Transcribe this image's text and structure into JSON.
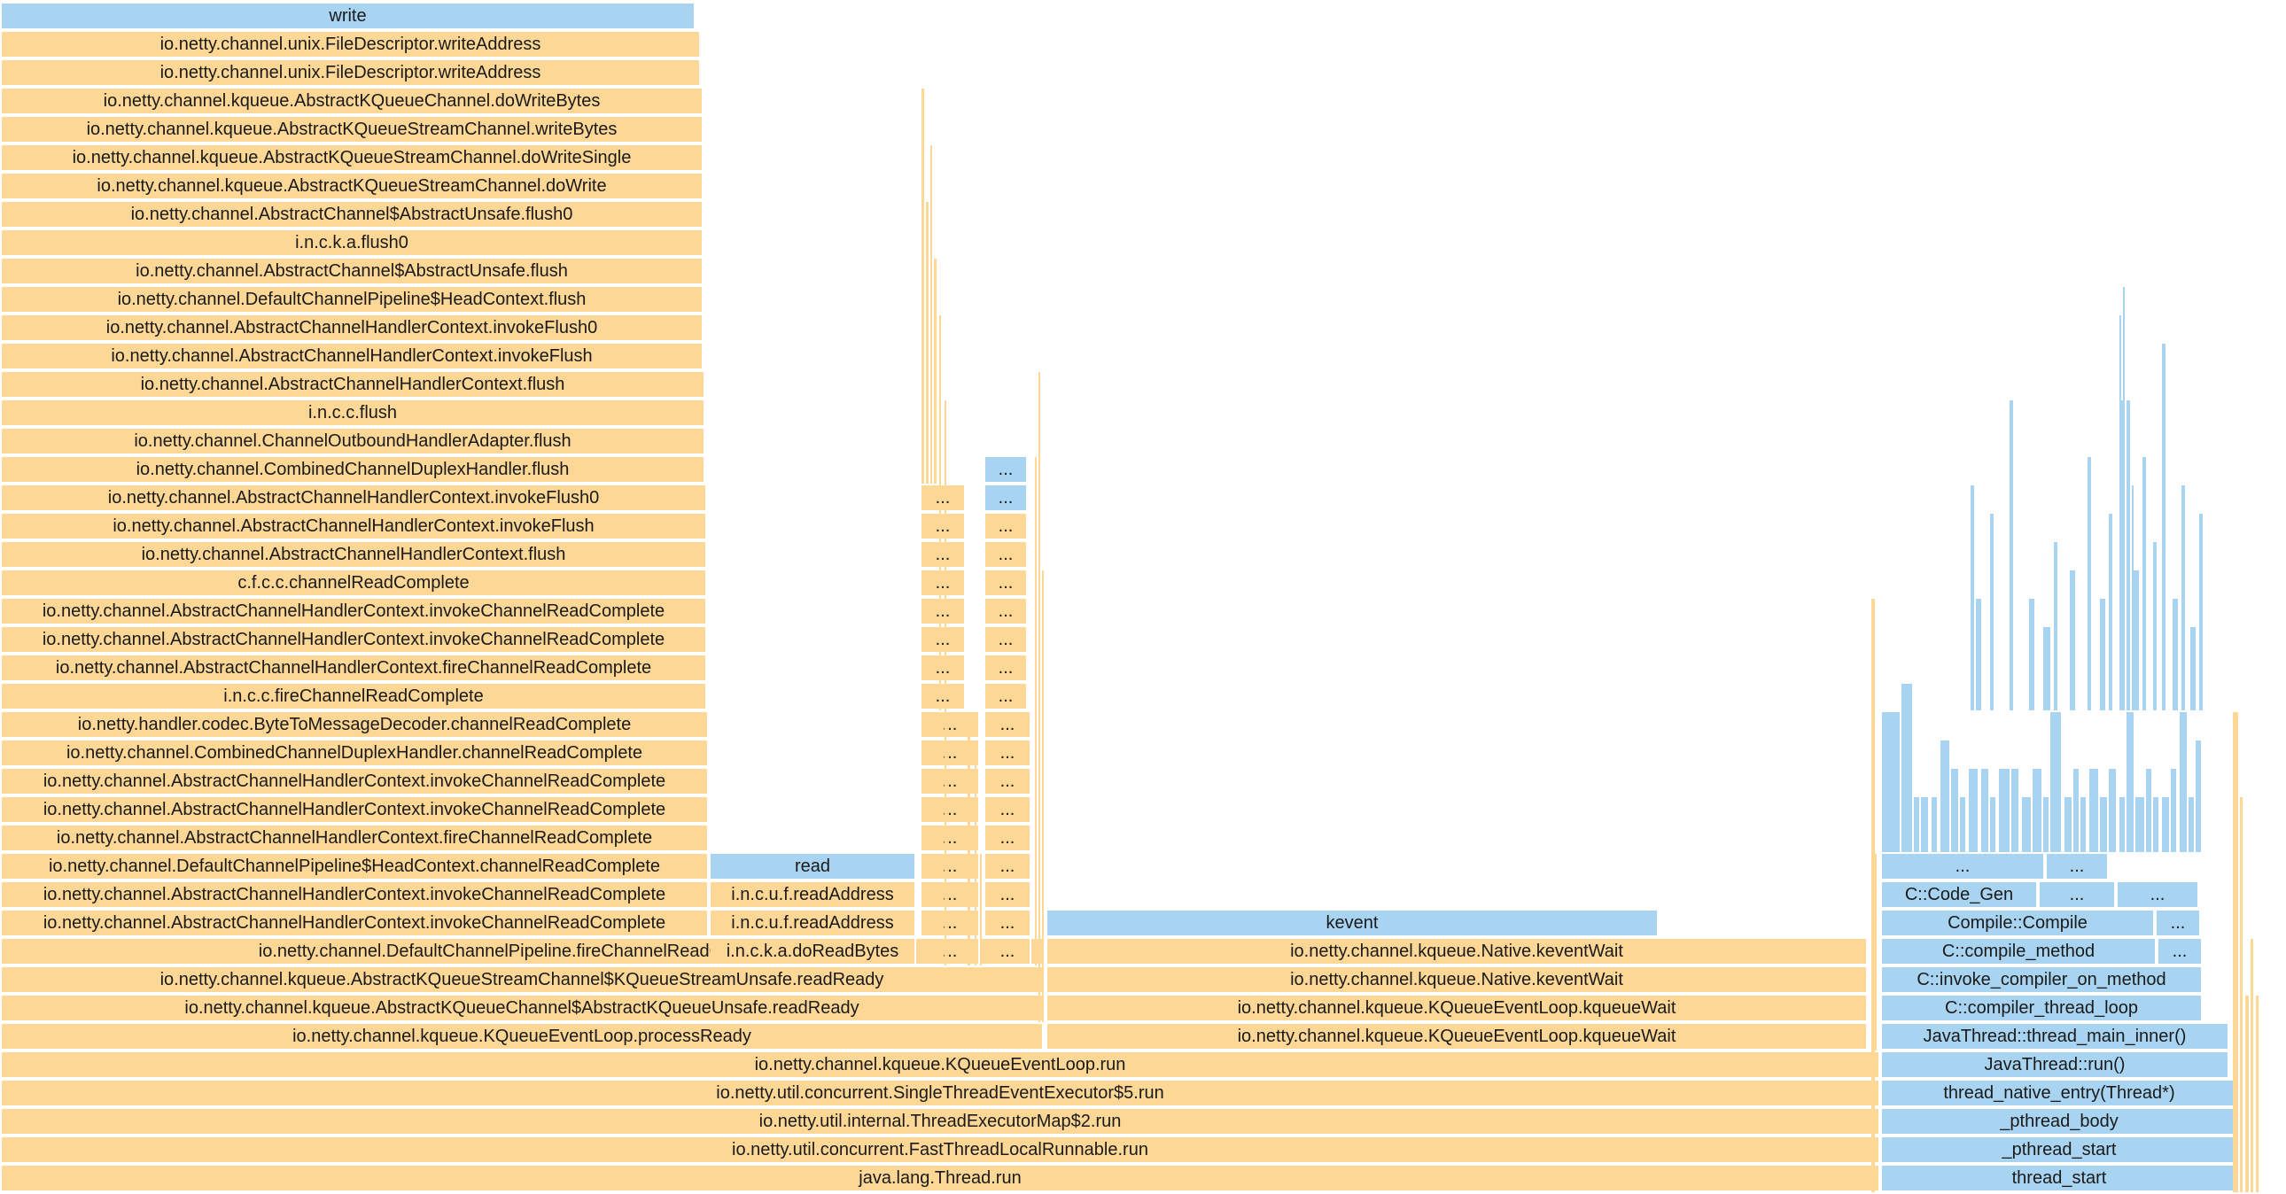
{
  "colors": {
    "java": "#fcd795",
    "native": "#a8d4f2",
    "background": "#ffffff"
  },
  "frames": [
    {
      "label": "write",
      "c": "n"
    },
    {
      "label": "io.netty.channel.unix.FileDescriptor.writeAddress",
      "c": "j"
    },
    {
      "label": "io.netty.channel.unix.FileDescriptor.writeAddress",
      "c": "j"
    },
    {
      "label": "io.netty.channel.kqueue.AbstractKQueueChannel.doWriteBytes",
      "c": "j"
    },
    {
      "label": "io.netty.channel.kqueue.AbstractKQueueStreamChannel.writeBytes",
      "c": "j"
    },
    {
      "label": "io.netty.channel.kqueue.AbstractKQueueStreamChannel.doWriteSingle",
      "c": "j"
    },
    {
      "label": "io.netty.channel.kqueue.AbstractKQueueStreamChannel.doWrite",
      "c": "j"
    },
    {
      "label": "io.netty.channel.AbstractChannel$AbstractUnsafe.flush0",
      "c": "j"
    },
    {
      "label": "i.n.c.k.a.flush0",
      "c": "j"
    },
    {
      "label": "io.netty.channel.AbstractChannel$AbstractUnsafe.flush",
      "c": "j"
    },
    {
      "label": "io.netty.channel.DefaultChannelPipeline$HeadContext.flush",
      "c": "j"
    },
    {
      "label": "io.netty.channel.AbstractChannelHandlerContext.invokeFlush0",
      "c": "j"
    },
    {
      "label": "io.netty.channel.AbstractChannelHandlerContext.invokeFlush",
      "c": "j"
    },
    {
      "label": "io.netty.channel.AbstractChannelHandlerContext.flush",
      "c": "j"
    },
    {
      "label": "i.n.c.c.flush",
      "c": "j"
    },
    {
      "label": "io.netty.channel.ChannelOutboundHandlerAdapter.flush",
      "c": "j"
    },
    {
      "label": "io.netty.channel.CombinedChannelDuplexHandler.flush",
      "c": "j"
    },
    {
      "label": "io.netty.channel.AbstractChannelHandlerContext.invokeFlush0",
      "c": "j"
    },
    {
      "label": "io.netty.channel.AbstractChannelHandlerContext.invokeFlush",
      "c": "j"
    },
    {
      "label": "io.netty.channel.AbstractChannelHandlerContext.flush",
      "c": "j"
    },
    {
      "label": "c.f.c.c.channelReadComplete",
      "c": "j"
    },
    {
      "label": "io.netty.channel.AbstractChannelHandlerContext.invokeChannelReadComplete",
      "c": "j"
    },
    {
      "label": "io.netty.channel.AbstractChannelHandlerContext.invokeChannelReadComplete",
      "c": "j"
    },
    {
      "label": "io.netty.channel.AbstractChannelHandlerContext.fireChannelReadComplete",
      "c": "j"
    },
    {
      "label": "i.n.c.c.fireChannelReadComplete",
      "c": "j"
    },
    {
      "label": "io.netty.handler.codec.ByteToMessageDecoder.channelReadComplete",
      "c": "j"
    },
    {
      "label": "io.netty.channel.CombinedChannelDuplexHandler.channelReadComplete",
      "c": "j"
    },
    {
      "label": "io.netty.channel.AbstractChannelHandlerContext.invokeChannelReadComplete",
      "c": "j"
    },
    {
      "label": "io.netty.channel.AbstractChannelHandlerContext.invokeChannelReadComplete",
      "c": "j"
    },
    {
      "label": "io.netty.channel.AbstractChannelHandlerContext.fireChannelReadComplete",
      "c": "j"
    },
    {
      "label": "io.netty.channel.DefaultChannelPipeline$HeadContext.channelReadComplete",
      "c": "j"
    },
    {
      "label": "io.netty.channel.AbstractChannelHandlerContext.invokeChannelReadComplete",
      "c": "j"
    },
    {
      "label": "io.netty.channel.AbstractChannelHandlerContext.invokeChannelReadComplete",
      "c": "j"
    },
    {
      "label": "io.netty.channel.DefaultChannelPipeline.fireChannelReadComplete",
      "c": "j"
    },
    {
      "label": "io.netty.channel.kqueue.AbstractKQueueStreamChannel$KQueueStreamUnsafe.readReady",
      "c": "j"
    },
    {
      "label": "io.netty.channel.kqueue.AbstractKQueueChannel$AbstractKQueueUnsafe.readReady",
      "c": "j"
    },
    {
      "label": "io.netty.channel.kqueue.KQueueEventLoop.processReady",
      "c": "j"
    },
    {
      "label": "io.netty.channel.kqueue.KQueueEventLoop.run",
      "c": "j"
    },
    {
      "label": "io.netty.util.concurrent.SingleThreadEventExecutor$5.run",
      "c": "j"
    },
    {
      "label": "io.netty.util.internal.ThreadExecutorMap$2.run",
      "c": "j"
    },
    {
      "label": "io.netty.util.concurrent.FastThreadLocalRunnable.run",
      "c": "j"
    },
    {
      "label": "java.lang.Thread.run",
      "c": "j"
    },
    {
      "label": "read",
      "c": "n"
    },
    {
      "label": "i.n.c.u.f.readAddress",
      "c": "j"
    },
    {
      "label": "i.n.c.u.f.readAddress",
      "c": "j"
    },
    {
      "label": "i.n.c.k.a.doReadBytes",
      "c": "j"
    },
    {
      "label": "...",
      "c": "j"
    },
    {
      "label": "...",
      "c": "n"
    },
    {
      "label": "kevent",
      "c": "n"
    },
    {
      "label": "io.netty.channel.kqueue.Native.keventWait",
      "c": "j"
    },
    {
      "label": "io.netty.channel.kqueue.Native.keventWait",
      "c": "j"
    },
    {
      "label": "io.netty.channel.kqueue.KQueueEventLoop.kqueueWait",
      "c": "j"
    },
    {
      "label": "io.netty.channel.kqueue.KQueueEventLoop.kqueueWait",
      "c": "j"
    },
    {
      "label": "C::Code_Gen",
      "c": "n"
    },
    {
      "label": "Compile::Compile",
      "c": "n"
    },
    {
      "label": "C::compile_method",
      "c": "n"
    },
    {
      "label": "C::invoke_compiler_on_method",
      "c": "n"
    },
    {
      "label": "C::compiler_thread_loop",
      "c": "n"
    },
    {
      "label": "JavaThread::thread_main_inner()",
      "c": "n"
    },
    {
      "label": "JavaThread::run()",
      "c": "n"
    },
    {
      "label": "thread_native_entry(Thread*)",
      "c": "n"
    },
    {
      "label": "_pthread_body",
      "c": "n"
    },
    {
      "label": "_pthread_start",
      "c": "n"
    },
    {
      "label": "thread_start",
      "c": "n"
    }
  ]
}
